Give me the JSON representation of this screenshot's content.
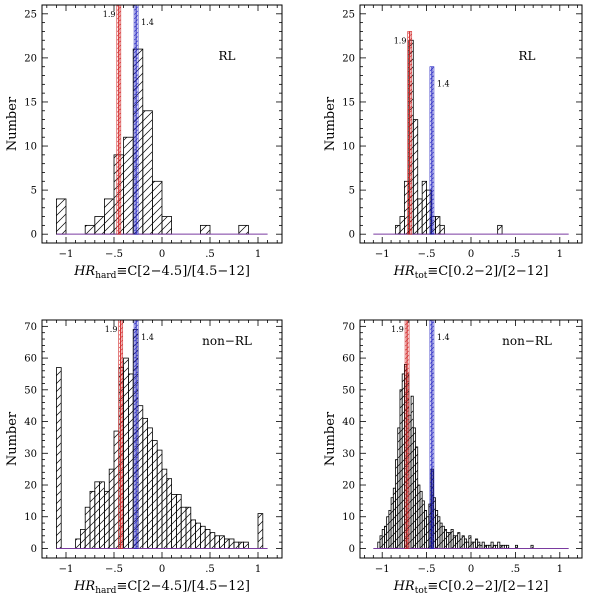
{
  "chart_data": [
    {
      "type": "bar",
      "panel_label": "RL",
      "xlabel_main": "HR",
      "xlabel_sub": "hard",
      "xlabel_rest": "≡C[2−4.5]/[4.5−12]",
      "ylabel": "Number",
      "xlim": [
        -1.25,
        1.25
      ],
      "ylim": [
        -1,
        26
      ],
      "xticks": [
        -1,
        -0.5,
        0,
        0.5,
        1
      ],
      "yticks": [
        0,
        5,
        10,
        15,
        20,
        25
      ],
      "bin_width": 0.1,
      "hist": {
        "bin_centers": [
          -1.05,
          -0.95,
          -0.85,
          -0.75,
          -0.65,
          -0.55,
          -0.45,
          -0.35,
          -0.25,
          -0.15,
          -0.05,
          0.05,
          0.15,
          0.25,
          0.35,
          0.45,
          0.55,
          0.65,
          0.75,
          0.85,
          0.95
        ],
        "values": [
          4,
          0,
          0,
          1,
          2,
          4,
          9,
          11,
          21,
          14,
          6,
          2,
          0,
          0,
          0,
          1,
          0,
          0,
          0,
          1,
          0
        ]
      },
      "vlines": [
        {
          "label": "1.9",
          "x": -0.45,
          "color": "#d02020",
          "y_top": 26
        },
        {
          "label": "1.4",
          "x": -0.27,
          "color": "#2020c0",
          "y_top": 26
        }
      ]
    },
    {
      "type": "bar",
      "panel_label": "RL",
      "xlabel_main": "HR",
      "xlabel_sub": "tot",
      "xlabel_rest": "≡C[0.2−2]/[2−12]",
      "ylabel": "Number",
      "xlim": [
        -1.25,
        1.25
      ],
      "ylim": [
        -1,
        26
      ],
      "xticks": [
        -1,
        -0.5,
        0,
        0.5,
        1
      ],
      "yticks": [
        0,
        5,
        10,
        15,
        20,
        25
      ],
      "bin_width": 0.05,
      "hist": {
        "bin_centers": [
          -0.825,
          -0.775,
          -0.725,
          -0.675,
          -0.625,
          -0.575,
          -0.525,
          -0.475,
          -0.425,
          -0.375,
          -0.325,
          0.325
        ],
        "values": [
          1,
          2,
          6,
          22,
          13,
          4,
          6,
          5,
          2,
          2,
          1,
          1
        ]
      },
      "vlines": [
        {
          "label": "1.9",
          "x": -0.69,
          "color": "#d02020",
          "y_top": 23
        },
        {
          "label": "1.4",
          "x": -0.44,
          "color": "#2020c0",
          "y_top": 19
        }
      ]
    },
    {
      "type": "bar",
      "panel_label": "non−RL",
      "xlabel_main": "HR",
      "xlabel_sub": "hard",
      "xlabel_rest": "≡C[2−4.5]/[4.5−12]",
      "ylabel": "Number",
      "xlim": [
        -1.25,
        1.25
      ],
      "ylim": [
        -3,
        72
      ],
      "xticks": [
        -1,
        -0.5,
        0,
        0.5,
        1
      ],
      "yticks": [
        0,
        10,
        20,
        30,
        40,
        50,
        60,
        70
      ],
      "bin_width": 0.05,
      "hist": {
        "bin_centers": [
          -1.075,
          -1.025,
          -0.975,
          -0.925,
          -0.875,
          -0.825,
          -0.775,
          -0.725,
          -0.675,
          -0.625,
          -0.575,
          -0.525,
          -0.475,
          -0.425,
          -0.375,
          -0.325,
          -0.275,
          -0.225,
          -0.175,
          -0.125,
          -0.075,
          -0.025,
          0.025,
          0.075,
          0.125,
          0.175,
          0.225,
          0.275,
          0.325,
          0.375,
          0.425,
          0.475,
          0.525,
          0.575,
          0.625,
          0.675,
          0.725,
          0.775,
          0.825,
          0.875,
          0.925,
          0.975,
          1.025,
          1.075
        ],
        "values": [
          57,
          0,
          0,
          0,
          3,
          6,
          13,
          18,
          21,
          21,
          18,
          25,
          37,
          57,
          60,
          55,
          69,
          45,
          41,
          38,
          34,
          31,
          25,
          22,
          17,
          17,
          13,
          13,
          9,
          8,
          7,
          6,
          5,
          4,
          4,
          3,
          3,
          2,
          2,
          2,
          0,
          0,
          11,
          0
        ]
      },
      "vlines": [
        {
          "label": "1.9",
          "x": -0.43,
          "color": "#d02020",
          "y_top": 72
        },
        {
          "label": "1.4",
          "x": -0.27,
          "color": "#2020c0",
          "y_top": 72
        }
      ]
    },
    {
      "type": "bar",
      "panel_label": "non−RL",
      "xlabel_main": "HR",
      "xlabel_sub": "tot",
      "xlabel_rest": "≡C[0.2−2]/[2−12]",
      "ylabel": "Number",
      "xlim": [
        -1.25,
        1.25
      ],
      "ylim": [
        -3,
        72
      ],
      "xticks": [
        -1,
        -0.5,
        0,
        0.5,
        1
      ],
      "yticks": [
        0,
        10,
        20,
        30,
        40,
        50,
        60,
        70
      ],
      "bin_width": 0.025,
      "hist": {
        "bin_centers": [
          -1.0625,
          -1.0375,
          -1.0125,
          -0.9875,
          -0.9625,
          -0.9375,
          -0.9125,
          -0.8875,
          -0.8625,
          -0.8375,
          -0.8125,
          -0.7875,
          -0.7625,
          -0.7375,
          -0.7125,
          -0.6875,
          -0.6625,
          -0.6375,
          -0.6125,
          -0.5875,
          -0.5625,
          -0.5375,
          -0.5125,
          -0.4875,
          -0.4625,
          -0.4375,
          -0.4125,
          -0.3875,
          -0.3625,
          -0.3375,
          -0.3125,
          -0.2875,
          -0.2625,
          -0.2375,
          -0.2125,
          -0.1875,
          -0.1625,
          -0.1375,
          -0.1125,
          -0.0875,
          -0.0625,
          -0.0375,
          -0.0125,
          0.0125,
          0.0375,
          0.0625,
          0.0875,
          0.1125,
          0.1375,
          0.1625,
          0.1875,
          0.2125,
          0.2375,
          0.2625,
          0.2875,
          0.3125,
          0.3375,
          0.3625,
          0.3875,
          0.4125,
          0.4375,
          0.4625,
          0.4875,
          0.5125,
          0.5375,
          0.5625,
          0.5875,
          0.6125,
          0.6375,
          0.6625,
          0.6875,
          0.7125,
          0.7375,
          0.7625,
          0.7875,
          0.8125,
          0.8375,
          0.8625,
          0.8875
        ],
        "values": [
          0,
          2,
          4,
          6,
          7,
          10,
          12,
          16,
          19,
          28,
          38,
          50,
          55,
          58,
          55,
          42,
          48,
          38,
          32,
          20,
          18,
          15,
          12,
          10,
          14,
          25,
          16,
          12,
          10,
          8,
          7,
          6,
          5,
          5,
          6,
          4,
          4,
          5,
          3,
          4,
          3,
          2,
          4,
          2,
          2,
          3,
          2,
          1,
          2,
          1,
          1,
          1,
          2,
          1,
          1,
          2,
          1,
          1,
          1,
          1,
          0,
          0,
          0,
          1,
          0,
          0,
          0,
          0,
          0,
          0,
          1,
          0,
          0,
          0,
          0,
          0,
          0,
          0,
          0
        ]
      },
      "vlines": [
        {
          "label": "1.9",
          "x": -0.72,
          "color": "#d02020",
          "y_top": 72
        },
        {
          "label": "1.4",
          "x": -0.44,
          "color": "#2020c0",
          "y_top": 72
        }
      ]
    }
  ]
}
